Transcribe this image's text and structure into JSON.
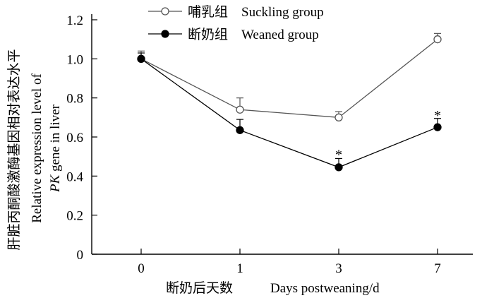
{
  "chart_data": {
    "type": "line",
    "categories": [
      "0",
      "1",
      "3",
      "7"
    ],
    "xlabel_cn": "断奶后天数",
    "xlabel_en": "Days postweaning/d",
    "ylabel_cn": "肝脏丙酮酸激酶基因相对表达水平",
    "ylabel_en_line1": "Relative expression level of",
    "ylabel_en_italic": "PK",
    "ylabel_en_line2_rest": " gene in liver",
    "ylim": [
      0,
      1.2
    ],
    "yticks": [
      "0",
      "0.2",
      "0.4",
      "0.6",
      "0.8",
      "1.0",
      "1.2"
    ],
    "series": [
      {
        "name_cn": "哺乳组",
        "name_en": "Suckling group",
        "marker": "open-circle",
        "color": "#555555",
        "values": [
          1.0,
          0.74,
          0.7,
          1.1
        ],
        "errors": [
          0.04,
          0.06,
          0.03,
          0.03
        ]
      },
      {
        "name_cn": "断奶组",
        "name_en": "Weaned group",
        "marker": "filled-circle",
        "color": "#000000",
        "values": [
          1.0,
          0.635,
          0.445,
          0.65
        ],
        "errors": [
          0.03,
          0.055,
          0.045,
          0.045
        ]
      }
    ],
    "annotations": [
      {
        "category": "3",
        "text": "*",
        "y": 0.53
      },
      {
        "category": "7",
        "text": "*",
        "y": 0.73
      }
    ],
    "legend_placement": "top",
    "grid": false
  }
}
